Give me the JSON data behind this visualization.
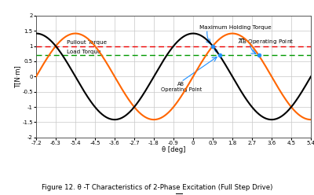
{
  "title": "Figure 12. θ -T Characteristics of 2-Phase Excitation (Full Step Drive)",
  "xlabel": "θ [deg]",
  "ylabel": "T[N·m]",
  "xlim": [
    -7.2,
    5.4
  ],
  "ylim": [
    -2.0,
    2.0
  ],
  "xticks": [
    -7.2,
    -6.3,
    -5.4,
    -4.5,
    -3.6,
    -2.7,
    -1.8,
    -0.9,
    0,
    0.9,
    1.8,
    2.7,
    3.6,
    4.5,
    5.4
  ],
  "yticks": [
    -2.0,
    -1.5,
    -1.0,
    -0.5,
    0.0,
    0.5,
    1.0,
    1.5,
    2.0
  ],
  "ab_color": "#000000",
  "abbar_color": "#FF6600",
  "pullout_torque": 1.0,
  "load_torque": 0.7,
  "pullout_color": "#EE0000",
  "load_color": "#009900",
  "amplitude": 1.414,
  "period_deg": 7.2,
  "ab_phase_deg": 1.8,
  "abbar_phase_deg": 0.0,
  "bg_color": "#FFFFFF",
  "grid_color": "#C8C8C8",
  "dot_color": "#1E8FFF",
  "legend_ab": "AB",
  "legend_abbar": "$\\overline{A}$B"
}
